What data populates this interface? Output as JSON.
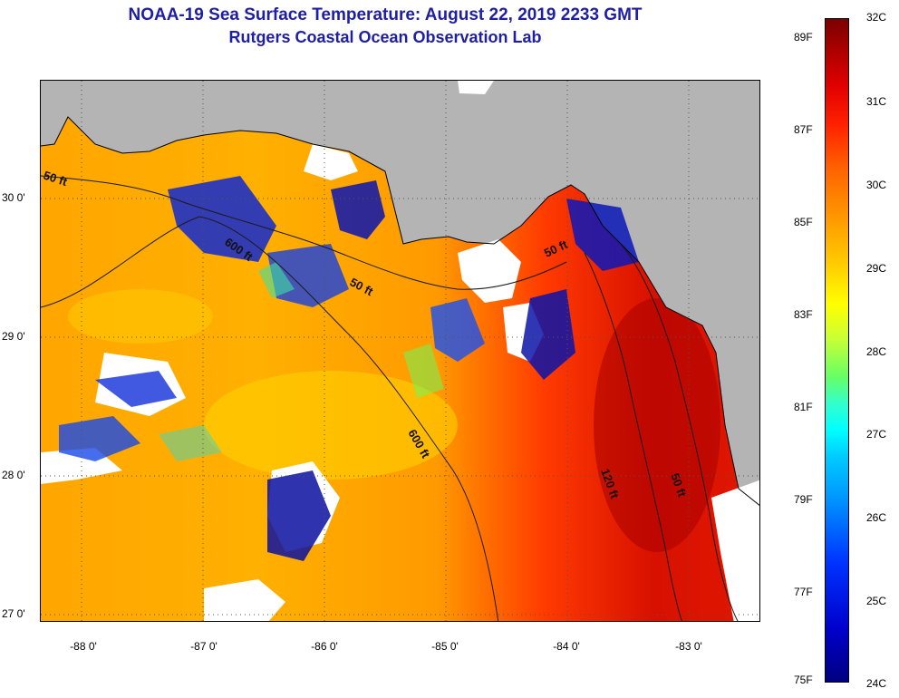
{
  "title": "NOAA-19 Sea Surface Temperature:  August 22, 2019 2233 GMT",
  "subtitle": "Rutgers Coastal Ocean Observation Lab",
  "map": {
    "latitude_labels": [
      "30 0'",
      "29 0'",
      "28 0'",
      "27 0'"
    ],
    "longitude_labels": [
      "-88 0'",
      "-87 0'",
      "-86 0'",
      "-85 0'",
      "-84 0'",
      "-83 0'"
    ],
    "contour_labels": [
      "50 ft",
      "50 ft",
      "50 ft",
      "600 ft",
      "600 ft",
      "120 ft",
      "50 ft"
    ],
    "land_color": "#b4b4b4",
    "cloud_color": "#ffffff"
  },
  "colorbar": {
    "fahrenheit_labels": [
      "89F",
      "87F",
      "85F",
      "83F",
      "81F",
      "79F",
      "77F",
      "75F"
    ],
    "celsius_labels": [
      "32C",
      "31C",
      "30C",
      "29C",
      "28C",
      "27C",
      "26C",
      "25C",
      "24C"
    ]
  }
}
